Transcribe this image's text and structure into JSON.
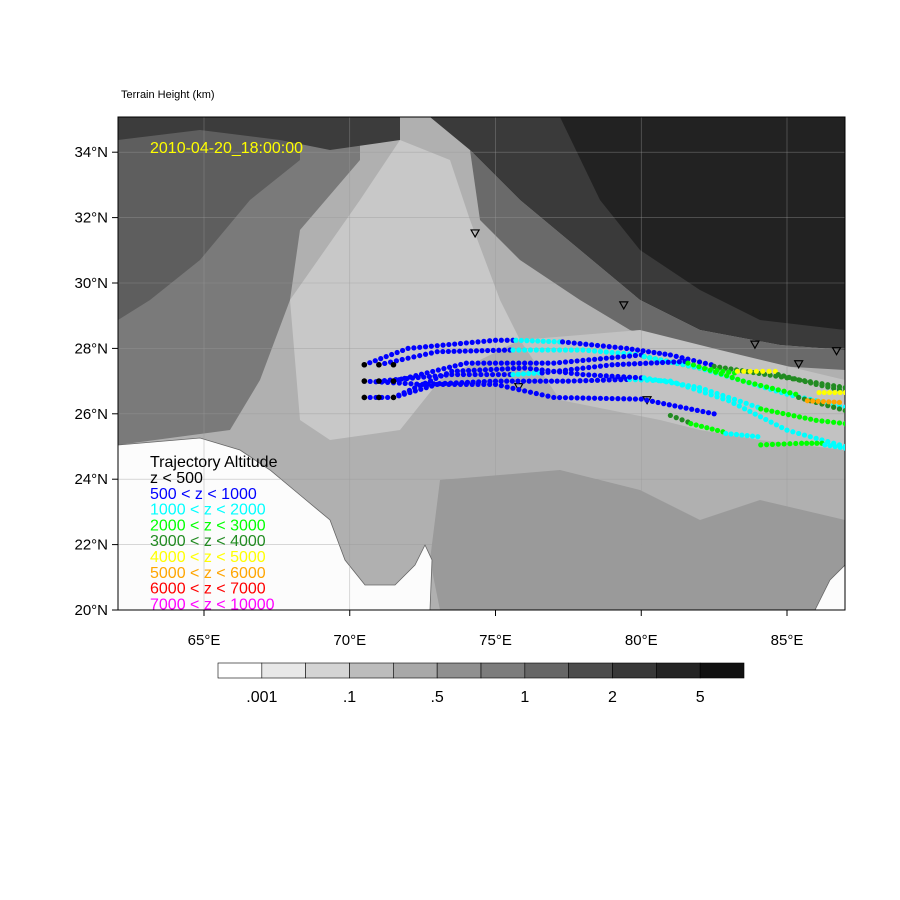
{
  "header": {
    "title": "Terrain Height   (km)"
  },
  "map": {
    "timestamp": "2010-04-20_18:00:00",
    "timestamp_color": "#ffff00",
    "lon_range": [
      62.05,
      87.0
    ],
    "lat_range": [
      20.0,
      35.1
    ],
    "lat_ticks": [
      {
        "v": 34,
        "label": "34°N"
      },
      {
        "v": 32,
        "label": "32°N"
      },
      {
        "v": 30,
        "label": "30°N"
      },
      {
        "v": 28,
        "label": "28°N"
      },
      {
        "v": 26,
        "label": "26°N"
      },
      {
        "v": 24,
        "label": "24°N"
      },
      {
        "v": 22,
        "label": "22°N"
      },
      {
        "v": 20,
        "label": "20°N"
      }
    ],
    "lon_ticks": [
      {
        "v": 65,
        "label": "65°E"
      },
      {
        "v": 70,
        "label": "70°E"
      },
      {
        "v": 75,
        "label": "75°E"
      },
      {
        "v": 80,
        "label": "80°E"
      },
      {
        "v": 85,
        "label": "85°E"
      }
    ],
    "stations": [
      [
        74.3,
        31.5
      ],
      [
        79.4,
        29.3
      ],
      [
        83.9,
        28.1
      ],
      [
        85.4,
        27.5
      ],
      [
        86.7,
        27.9
      ],
      [
        75.8,
        26.8
      ],
      [
        80.2,
        26.4
      ]
    ]
  },
  "legend": {
    "title": "Trajectory Altitude",
    "items": [
      {
        "label": "z < 500",
        "color": "#000000"
      },
      {
        "label": "500 < z < 1000",
        "color": "#0000ff"
      },
      {
        "label": "1000 < z < 2000",
        "color": "#00ffff"
      },
      {
        "label": "2000 < z < 3000",
        "color": "#00ff00"
      },
      {
        "label": "3000 < z < 4000",
        "color": "#228b22"
      },
      {
        "label": "4000 < z < 5000",
        "color": "#ffff00"
      },
      {
        "label": "5000 < z < 6000",
        "color": "#ffa500"
      },
      {
        "label": "6000 < z < 7000",
        "color": "#ff0000"
      },
      {
        "label": "7000 < z < 10000",
        "color": "#ff00ff"
      }
    ]
  },
  "trajectories": [
    {
      "segments": [
        {
          "c": 1,
          "pts": [
            [
              70.5,
              27.5
            ],
            [
              72,
              28.0
            ],
            [
              75,
              28.25
            ],
            [
              75.6,
              28.25
            ]
          ]
        },
        {
          "c": 2,
          "pts": [
            [
              75.7,
              28.25
            ],
            [
              77.2,
              28.2
            ]
          ]
        },
        {
          "c": 1,
          "pts": [
            [
              77.3,
              28.2
            ],
            [
              79.5,
              28.0
            ],
            [
              81,
              27.8
            ],
            [
              82.4,
              27.5
            ]
          ]
        },
        {
          "c": 4,
          "pts": [
            [
              82.5,
              27.45
            ],
            [
              85,
              27.1
            ],
            [
              87,
              26.8
            ]
          ]
        }
      ]
    },
    {
      "segments": [
        {
          "c": 1,
          "pts": [
            [
              71,
              27.5
            ],
            [
              73,
              27.9
            ],
            [
              75.5,
              27.95
            ]
          ]
        },
        {
          "c": 2,
          "pts": [
            [
              75.6,
              27.95
            ],
            [
              78,
              27.95
            ],
            [
              80,
              27.8
            ]
          ]
        },
        {
          "c": 3,
          "pts": [
            [
              80.1,
              27.75
            ],
            [
              82,
              27.4
            ],
            [
              83.2,
              27.25
            ]
          ]
        },
        {
          "c": 5,
          "pts": [
            [
              83.3,
              27.3
            ],
            [
              84.6,
              27.3
            ]
          ]
        },
        {
          "c": 4,
          "pts": [
            [
              84.7,
              27.2
            ],
            [
              86,
              26.9
            ],
            [
              87,
              26.7
            ]
          ]
        }
      ]
    },
    {
      "segments": [
        {
          "c": 1,
          "pts": [
            [
              71.5,
              27.0
            ],
            [
              74,
              27.55
            ],
            [
              77,
              27.55
            ],
            [
              80,
              27.8
            ]
          ]
        },
        {
          "c": 2,
          "pts": [
            [
              80.1,
              27.75
            ],
            [
              82,
              27.4
            ],
            [
              85,
              26.6
            ],
            [
              87,
              26.2
            ]
          ]
        }
      ]
    },
    {
      "segments": [
        {
          "c": 1,
          "pts": [
            [
              71,
              27.0
            ],
            [
              73.5,
              27.2
            ],
            [
              75.5,
              27.2
            ]
          ]
        },
        {
          "c": 2,
          "pts": [
            [
              75.6,
              27.2
            ],
            [
              76.5,
              27.25
            ]
          ]
        },
        {
          "c": 1,
          "pts": [
            [
              76.6,
              27.25
            ],
            [
              79,
              27.5
            ],
            [
              81.5,
              27.6
            ]
          ]
        },
        {
          "c": 3,
          "pts": [
            [
              81.6,
              27.55
            ],
            [
              83.5,
              27.0
            ],
            [
              85.3,
              26.6
            ]
          ]
        },
        {
          "c": 4,
          "pts": [
            [
              85.4,
              26.5
            ],
            [
              87,
              26.1
            ]
          ]
        }
      ]
    },
    {
      "segments": [
        {
          "c": 1,
          "pts": [
            [
              70.5,
              27.0
            ],
            [
              72.5,
              26.9
            ],
            [
              75,
              27.0
            ],
            [
              77.5,
              27.0
            ],
            [
              79.5,
              27.05
            ]
          ]
        },
        {
          "c": 2,
          "pts": [
            [
              79.6,
              27.05
            ],
            [
              81,
              27.0
            ],
            [
              83,
              26.4
            ],
            [
              85,
              25.5
            ],
            [
              87,
              25.0
            ]
          ]
        }
      ]
    },
    {
      "segments": [
        {
          "c": 1,
          "pts": [
            [
              70.5,
              26.5
            ],
            [
              71.5,
              26.5
            ],
            [
              73,
              26.9
            ],
            [
              75,
              26.9
            ],
            [
              77,
              26.5
            ],
            [
              80,
              26.45
            ],
            [
              82.5,
              26.0
            ]
          ]
        }
      ]
    },
    {
      "segments": [
        {
          "c": 1,
          "pts": [
            [
              71.5,
              26.5
            ],
            [
              73.5,
              27.3
            ],
            [
              76,
              27.4
            ],
            [
              78,
              27.2
            ],
            [
              80,
              27.1
            ]
          ]
        },
        {
          "c": 2,
          "pts": [
            [
              80.1,
              27.1
            ],
            [
              82,
              26.8
            ],
            [
              84,
              26.2
            ]
          ]
        },
        {
          "c": 3,
          "pts": [
            [
              84.1,
              26.15
            ],
            [
              86,
              25.8
            ],
            [
              87,
              25.7
            ]
          ]
        }
      ]
    },
    {
      "segments": [
        {
          "c": 4,
          "pts": [
            [
              81,
              25.95
            ],
            [
              81.6,
              25.75
            ]
          ]
        },
        {
          "c": 3,
          "pts": [
            [
              81.7,
              25.7
            ],
            [
              82.8,
              25.45
            ]
          ]
        },
        {
          "c": 2,
          "pts": [
            [
              82.9,
              25.4
            ],
            [
              84,
              25.3
            ]
          ]
        },
        {
          "c": 3,
          "pts": [
            [
              84.1,
              25.05
            ],
            [
              85.5,
              25.1
            ],
            [
              86.2,
              25.1
            ]
          ]
        },
        {
          "c": 2,
          "pts": [
            [
              86.3,
              25.05
            ],
            [
              87,
              24.95
            ]
          ]
        }
      ]
    },
    {
      "segments": [
        {
          "c": 5,
          "pts": [
            [
              86.1,
              26.65
            ],
            [
              87,
              26.65
            ]
          ]
        },
        {
          "c": 6,
          "pts": [
            [
              85.7,
              26.4
            ],
            [
              86.8,
              26.35
            ]
          ]
        }
      ]
    }
  ],
  "colorbar": {
    "colors": [
      "#ffffff",
      "#e8e8e8",
      "#d4d4d4",
      "#bcbcbc",
      "#a8a8a8",
      "#909090",
      "#7c7c7c",
      "#666666",
      "#4c4c4c",
      "#383838",
      "#242424",
      "#111111"
    ],
    "labels": [
      {
        "after": 1,
        "text": ".001"
      },
      {
        "after": 3,
        "text": ".1"
      },
      {
        "after": 5,
        "text": ".5"
      },
      {
        "after": 7,
        "text": "1"
      },
      {
        "after": 9,
        "text": "2"
      },
      {
        "after": 11,
        "text": "5"
      }
    ]
  }
}
